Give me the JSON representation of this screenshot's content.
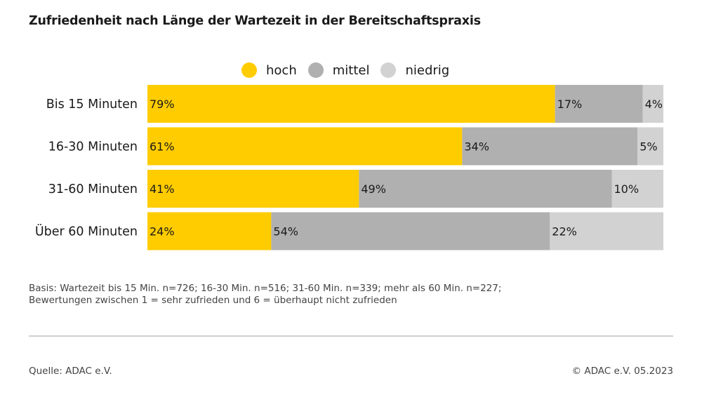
{
  "title": "Zufriedenheit nach Länge der Wartezeit in der Bereitschaftspraxis",
  "legend": [
    {
      "label": "hoch",
      "color": "#ffcc00"
    },
    {
      "label": "mittel",
      "color": "#b0b0b0"
    },
    {
      "label": "niedrig",
      "color": "#d2d2d2"
    }
  ],
  "chart_data": {
    "type": "bar",
    "orientation": "horizontal",
    "stacked": true,
    "categories": [
      "Bis 15 Minuten",
      "16-30 Minuten",
      "31-60 Minuten",
      "Über 60 Minuten"
    ],
    "series": [
      {
        "name": "hoch",
        "color": "#ffcc00",
        "values": [
          79,
          61,
          41,
          24
        ]
      },
      {
        "name": "mittel",
        "color": "#b0b0b0",
        "values": [
          17,
          34,
          49,
          54
        ]
      },
      {
        "name": "niedrig",
        "color": "#d2d2d2",
        "values": [
          4,
          5,
          10,
          22
        ]
      }
    ],
    "value_suffix": "%",
    "xlim": [
      0,
      100
    ],
    "grid": false,
    "legend_position": "top"
  },
  "basis": {
    "line1": "Basis: Wartezeit bis 15 Min. n=726; 16-30 Min. n=516; 31-60 Min. n=339; mehr als 60 Min. n=227;",
    "line2": "Bewertungen zwischen 1 = sehr zufrieden und 6 = überhaupt nicht zufrieden"
  },
  "footer": {
    "source": "Quelle: ADAC e.V.",
    "copyright": "© ADAC e.V. 05.2023"
  }
}
